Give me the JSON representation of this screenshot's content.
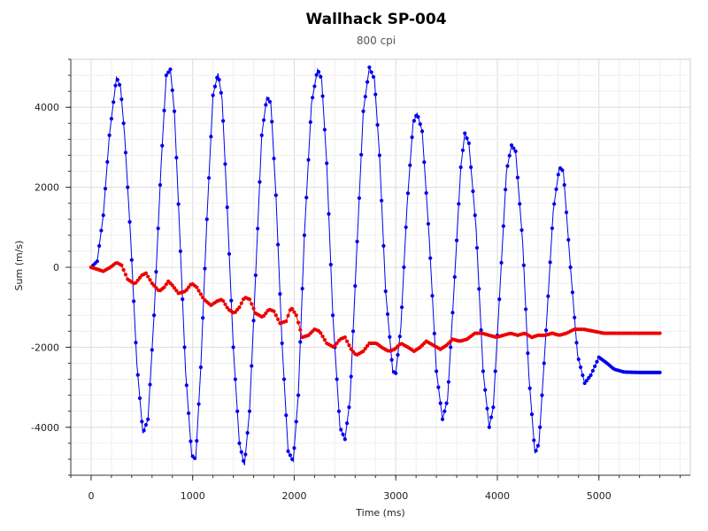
{
  "chart_data": {
    "type": "line",
    "title": "Wallhack SP-004",
    "subtitle": "800 cpi",
    "xlabel": "Time (ms)",
    "ylabel": "Sum (m/s)",
    "xlim": [
      -200,
      5900
    ],
    "ylim": [
      -5200,
      5200
    ],
    "x_ticks": [
      0,
      1000,
      2000,
      3000,
      4000,
      5000
    ],
    "y_ticks": [
      -4000,
      -2000,
      0,
      2000,
      4000
    ],
    "grid": true,
    "series": [
      {
        "color": "#0000ee",
        "points": [
          [
            0,
            0
          ],
          [
            60,
            150
          ],
          [
            120,
            1300
          ],
          [
            180,
            3300
          ],
          [
            250,
            4750
          ],
          [
            290,
            4500
          ],
          [
            330,
            3300
          ],
          [
            390,
            700
          ],
          [
            450,
            -2400
          ],
          [
            510,
            -4150
          ],
          [
            560,
            -3800
          ],
          [
            620,
            -1200
          ],
          [
            690,
            2600
          ],
          [
            740,
            4800
          ],
          [
            780,
            4950
          ],
          [
            820,
            3900
          ],
          [
            870,
            1000
          ],
          [
            930,
            -2600
          ],
          [
            990,
            -4700
          ],
          [
            1030,
            -4800
          ],
          [
            1080,
            -2500
          ],
          [
            1140,
            1200
          ],
          [
            1200,
            4300
          ],
          [
            1250,
            4850
          ],
          [
            1290,
            4200
          ],
          [
            1340,
            1500
          ],
          [
            1400,
            -2000
          ],
          [
            1460,
            -4400
          ],
          [
            1510,
            -4950
          ],
          [
            1560,
            -3600
          ],
          [
            1620,
            -200
          ],
          [
            1680,
            3300
          ],
          [
            1730,
            4250
          ],
          [
            1770,
            4100
          ],
          [
            1820,
            1800
          ],
          [
            1880,
            -1900
          ],
          [
            1940,
            -4600
          ],
          [
            1990,
            -4850
          ],
          [
            2040,
            -3200
          ],
          [
            2100,
            800
          ],
          [
            2170,
            4100
          ],
          [
            2230,
            4950
          ],
          [
            2270,
            4700
          ],
          [
            2320,
            2600
          ],
          [
            2380,
            -1200
          ],
          [
            2450,
            -4000
          ],
          [
            2500,
            -4300
          ],
          [
            2550,
            -3300
          ],
          [
            2610,
            100
          ],
          [
            2680,
            3900
          ],
          [
            2740,
            5000
          ],
          [
            2790,
            4700
          ],
          [
            2840,
            2800
          ],
          [
            2900,
            -600
          ],
          [
            2970,
            -2600
          ],
          [
            3000,
            -2650
          ],
          [
            3050,
            -1500
          ],
          [
            3110,
            1500
          ],
          [
            3170,
            3600
          ],
          [
            3210,
            3850
          ],
          [
            3260,
            3400
          ],
          [
            3330,
            700
          ],
          [
            3400,
            -2600
          ],
          [
            3460,
            -3800
          ],
          [
            3510,
            -3300
          ],
          [
            3570,
            -700
          ],
          [
            3640,
            2500
          ],
          [
            3680,
            3350
          ],
          [
            3720,
            3100
          ],
          [
            3790,
            1000
          ],
          [
            3860,
            -2600
          ],
          [
            3920,
            -4000
          ],
          [
            3960,
            -3500
          ],
          [
            4020,
            -800
          ],
          [
            4090,
            2400
          ],
          [
            4140,
            3050
          ],
          [
            4180,
            2900
          ],
          [
            4250,
            600
          ],
          [
            4310,
            -2700
          ],
          [
            4370,
            -4650
          ],
          [
            4410,
            -4400
          ],
          [
            4470,
            -2000
          ],
          [
            4550,
            1400
          ],
          [
            4610,
            2500
          ],
          [
            4650,
            2400
          ],
          [
            4720,
            0
          ],
          [
            4790,
            -2200
          ],
          [
            4860,
            -2900
          ],
          [
            4920,
            -2700
          ],
          [
            5000,
            -2250
          ],
          [
            5080,
            -2400
          ],
          [
            5150,
            -2550
          ],
          [
            5250,
            -2620
          ],
          [
            5400,
            -2630
          ],
          [
            5600,
            -2630
          ]
        ]
      },
      {
        "color": "#ee0000",
        "points": [
          [
            0,
            0
          ],
          [
            60,
            -50
          ],
          [
            120,
            -100
          ],
          [
            190,
            0
          ],
          [
            250,
            120
          ],
          [
            300,
            50
          ],
          [
            360,
            -300
          ],
          [
            430,
            -420
          ],
          [
            500,
            -200
          ],
          [
            540,
            -150
          ],
          [
            600,
            -400
          ],
          [
            670,
            -600
          ],
          [
            720,
            -500
          ],
          [
            760,
            -350
          ],
          [
            800,
            -450
          ],
          [
            860,
            -650
          ],
          [
            930,
            -600
          ],
          [
            990,
            -400
          ],
          [
            1040,
            -500
          ],
          [
            1110,
            -800
          ],
          [
            1180,
            -950
          ],
          [
            1240,
            -850
          ],
          [
            1290,
            -800
          ],
          [
            1350,
            -1050
          ],
          [
            1410,
            -1150
          ],
          [
            1460,
            -1000
          ],
          [
            1510,
            -750
          ],
          [
            1560,
            -800
          ],
          [
            1620,
            -1150
          ],
          [
            1690,
            -1250
          ],
          [
            1750,
            -1050
          ],
          [
            1800,
            -1100
          ],
          [
            1860,
            -1400
          ],
          [
            1920,
            -1350
          ],
          [
            1970,
            -1000
          ],
          [
            2020,
            -1200
          ],
          [
            2080,
            -1750
          ],
          [
            2140,
            -1700
          ],
          [
            2200,
            -1550
          ],
          [
            2250,
            -1600
          ],
          [
            2320,
            -1900
          ],
          [
            2390,
            -2000
          ],
          [
            2450,
            -1800
          ],
          [
            2500,
            -1750
          ],
          [
            2560,
            -2050
          ],
          [
            2610,
            -2200
          ],
          [
            2680,
            -2100
          ],
          [
            2740,
            -1900
          ],
          [
            2810,
            -1900
          ],
          [
            2860,
            -2000
          ],
          [
            2930,
            -2100
          ],
          [
            2990,
            -2050
          ],
          [
            3050,
            -1900
          ],
          [
            3120,
            -2000
          ],
          [
            3180,
            -2100
          ],
          [
            3240,
            -2000
          ],
          [
            3300,
            -1850
          ],
          [
            3370,
            -1950
          ],
          [
            3440,
            -2050
          ],
          [
            3500,
            -1950
          ],
          [
            3560,
            -1800
          ],
          [
            3630,
            -1850
          ],
          [
            3700,
            -1800
          ],
          [
            3780,
            -1650
          ],
          [
            3850,
            -1650
          ],
          [
            3920,
            -1700
          ],
          [
            3990,
            -1750
          ],
          [
            4060,
            -1700
          ],
          [
            4130,
            -1650
          ],
          [
            4200,
            -1700
          ],
          [
            4270,
            -1650
          ],
          [
            4340,
            -1750
          ],
          [
            4400,
            -1700
          ],
          [
            4470,
            -1700
          ],
          [
            4540,
            -1650
          ],
          [
            4610,
            -1700
          ],
          [
            4680,
            -1650
          ],
          [
            4760,
            -1550
          ],
          [
            4850,
            -1550
          ],
          [
            4950,
            -1600
          ],
          [
            5050,
            -1650
          ],
          [
            5150,
            -1650
          ],
          [
            5300,
            -1650
          ],
          [
            5450,
            -1650
          ],
          [
            5600,
            -1650
          ]
        ]
      }
    ]
  }
}
